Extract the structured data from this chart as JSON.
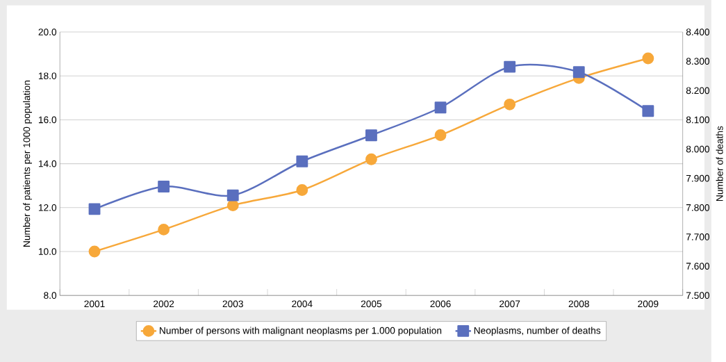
{
  "chart_data": {
    "type": "line",
    "categories": [
      "2001",
      "2002",
      "2003",
      "2004",
      "2005",
      "2006",
      "2007",
      "2008",
      "2009"
    ],
    "series": [
      {
        "name": "Number of persons with malignant neoplasms per 1.000 population",
        "color": "#f7a83a",
        "marker": "circle",
        "values": [
          10.0,
          11.0,
          12.1,
          12.8,
          14.2,
          15.3,
          16.7,
          17.9,
          18.8
        ]
      },
      {
        "name": "Neoplasms, number of deaths",
        "color": "#5a6fbe",
        "marker": "square",
        "axis": "y2",
        "values": [
          7.795,
          7.872,
          7.842,
          7.958,
          8.047,
          8.142,
          8.281,
          8.263,
          8.13
        ]
      }
    ],
    "ylabel": "Number of patients per 1000 population",
    "y2label": "Number of deaths",
    "ylim": [
      8,
      20
    ],
    "yticks": [
      {
        "value": 8,
        "label": "8.0"
      },
      {
        "value": 10,
        "label": "10.0"
      },
      {
        "value": 12,
        "label": "12.0"
      },
      {
        "value": 14,
        "label": "14.0"
      },
      {
        "value": 16,
        "label": "16.0"
      },
      {
        "value": 18,
        "label": "18.0"
      },
      {
        "value": 20,
        "label": "20.0"
      }
    ],
    "y2lim": [
      7.5,
      8.4
    ],
    "y2ticks": [
      {
        "value": 7.5,
        "label": "7.500"
      },
      {
        "value": 7.6,
        "label": "7.600"
      },
      {
        "value": 7.7,
        "label": "7.700"
      },
      {
        "value": 7.8,
        "label": "7.800"
      },
      {
        "value": 7.9,
        "label": "7.900"
      },
      {
        "value": 8.0,
        "label": "8.000"
      },
      {
        "value": 8.1,
        "label": "8.100"
      },
      {
        "value": 8.2,
        "label": "8.200"
      },
      {
        "value": 8.3,
        "label": "8.300"
      },
      {
        "value": 8.4,
        "label": "8.400"
      }
    ],
    "grid": "y",
    "legend": "bottom",
    "line_style": "solid"
  }
}
